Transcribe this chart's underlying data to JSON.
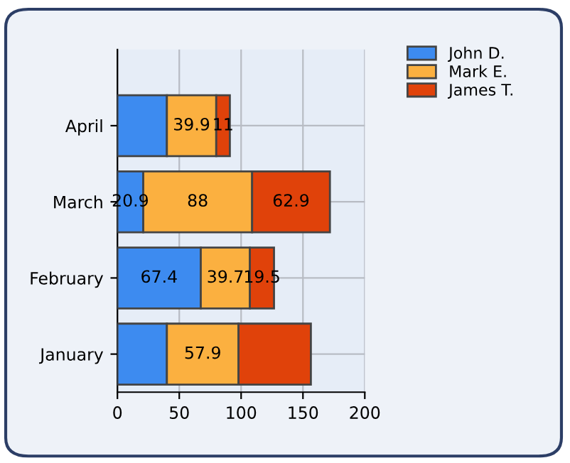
{
  "chart_data": {
    "type": "bar",
    "orientation": "horizontal",
    "stacked": true,
    "categories": [
      "April",
      "March",
      "February",
      "January"
    ],
    "series": [
      {
        "name": "John D.",
        "color": "#3d8bf0",
        "values": [
          40,
          20.9,
          67.4,
          40
        ],
        "value_labels": [
          null,
          "20.9",
          "67.4",
          null
        ]
      },
      {
        "name": "Mark E.",
        "color": "#fbb040",
        "values": [
          39.9,
          88,
          39.7,
          57.9
        ],
        "value_labels": [
          "39.9",
          "88",
          "39.7",
          "57.9"
        ]
      },
      {
        "name": "James T.",
        "color": "#e0420a",
        "values": [
          11,
          62.9,
          19.5,
          58.5
        ],
        "value_labels": [
          "11",
          "62.9",
          "19.5",
          null
        ]
      }
    ],
    "xlim": [
      0,
      200
    ],
    "xticks": [
      0,
      50,
      100,
      150,
      200
    ],
    "grid": true,
    "legend": "top right"
  }
}
